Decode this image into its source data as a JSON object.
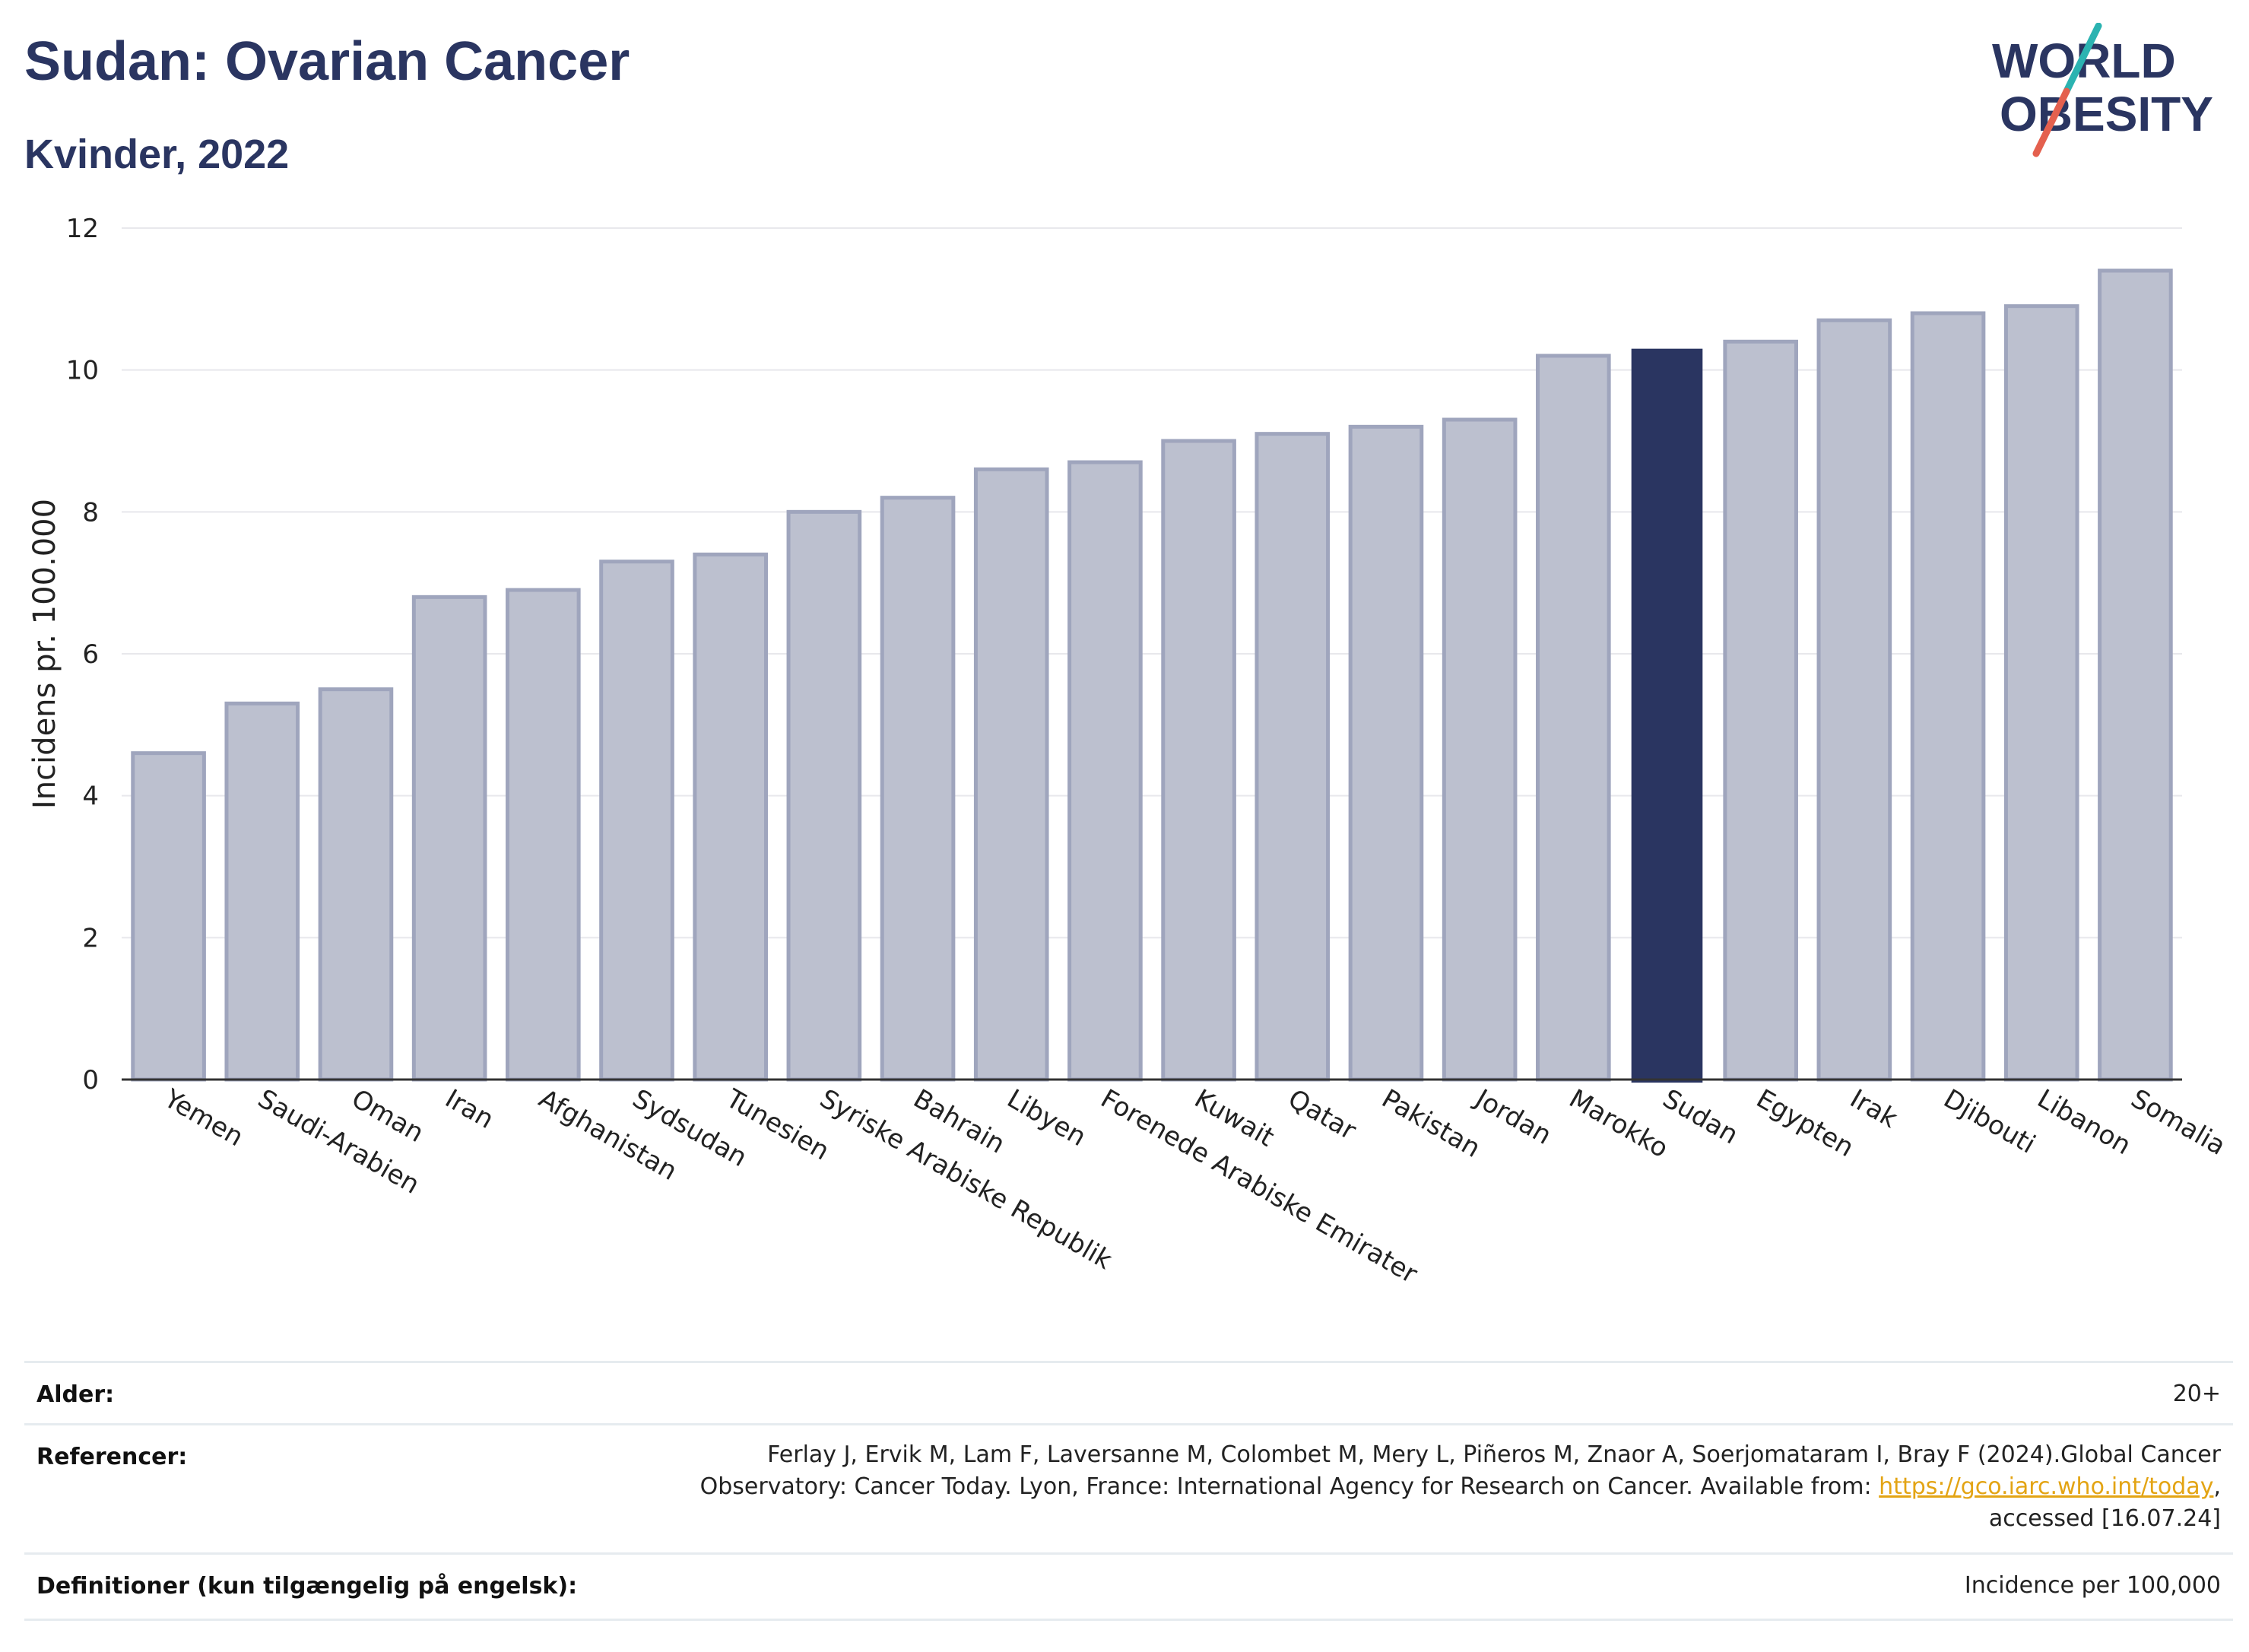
{
  "header": {
    "title": "Sudan: Ovarian Cancer",
    "subtitle": "Kvinder, 2022"
  },
  "logo": {
    "line1": "WORLD",
    "line2": "OBESITY",
    "accent_colors": [
      "#2bb3b1",
      "#e4604e"
    ]
  },
  "colors": {
    "highlight": "#2a3561",
    "bar": "#bcc0cf",
    "bar_border": "#9fa5bd",
    "link": "#e3a414"
  },
  "chart_data": {
    "type": "bar",
    "title": "Sudan: Ovarian Cancer",
    "subtitle": "Kvinder, 2022",
    "xlabel": "",
    "ylabel": "Incidens pr. 100.000",
    "ylim": [
      0,
      12
    ],
    "yticks": [
      0,
      2,
      4,
      6,
      8,
      10,
      12
    ],
    "grid": true,
    "highlight_category": "Sudan",
    "categories": [
      "Yemen",
      "Saudi-Arabien",
      "Oman",
      "Iran",
      "Afghanistan",
      "Sydsudan",
      "Tunesien",
      "Syriske Arabiske Republik",
      "Bahrain",
      "Libyen",
      "Forenede Arabiske Emirater",
      "Kuwait",
      "Qatar",
      "Pakistan",
      "Jordan",
      "Marokko",
      "Sudan",
      "Egypten",
      "Irak",
      "Djibouti",
      "Libanon",
      "Somalia"
    ],
    "values": [
      4.6,
      5.3,
      5.5,
      6.8,
      6.9,
      7.3,
      7.4,
      8.0,
      8.2,
      8.6,
      8.7,
      9.0,
      9.1,
      9.2,
      9.3,
      10.2,
      10.3,
      10.4,
      10.7,
      10.8,
      10.9,
      11.4
    ]
  },
  "meta": {
    "age_label": "Alder:",
    "age_value": "20+",
    "refs_label": "Referencer:",
    "refs_line1": "Ferlay J, Ervik M, Lam F, Laversanne M, Colombet M, Mery L, Piñeros M, Znaor A, Soerjomataram I, Bray F (2024).Global Cancer",
    "refs_line2_prefix": "Observatory: Cancer Today. Lyon, France: International Agency for Research on Cancer. Available from: ",
    "refs_link": "https://gco.iarc.who.int/today",
    "refs_line2_suffix": ",",
    "refs_line3": "accessed [16.07.24]",
    "defs_label": "Definitioner (kun tilgængelig på engelsk):",
    "defs_value": "Incidence per 100,000"
  }
}
